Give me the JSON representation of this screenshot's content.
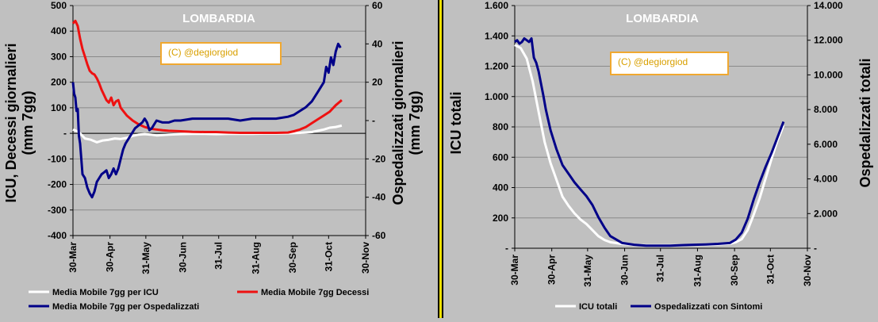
{
  "chart_data": [
    {
      "type": "line",
      "title": "LOMBARDIA",
      "watermark": "(C) @degiorgiod",
      "ylabel": "ICU, Decessi giornalieri (mm 7gg)",
      "ylabel_lines": [
        "ICU, Decessi giornalieri",
        "(mm 7gg)"
      ],
      "y2label": "Ospedalizzati giornalieri (mm 7gg)",
      "y2label_lines": [
        "Ospedalizzati giornalieri",
        "(mm 7gg)"
      ],
      "ylim": [
        -400,
        500
      ],
      "y2lim": [
        -60,
        60
      ],
      "yticks": [
        -400,
        -300,
        -200,
        -100,
        0,
        100,
        200,
        300,
        400,
        500
      ],
      "ytick_labels": [
        "-400",
        "-300",
        "-200",
        "-100",
        "-",
        "100",
        "200",
        "300",
        "400",
        "500"
      ],
      "y2ticks": [
        -60,
        -40,
        -20,
        0,
        20,
        40,
        60
      ],
      "y2tick_labels": [
        "-60",
        "-40",
        "-20",
        "-",
        "20",
        "40",
        "60"
      ],
      "xlim": [
        0,
        245
      ],
      "xticks": [
        0,
        31,
        61,
        92,
        122,
        153,
        184,
        214,
        245
      ],
      "xtick_labels": [
        "30-Mar",
        "30-Apr",
        "31-May",
        "30-Jun",
        "31-Jul",
        "31-Aug",
        "30-Sep",
        "31-Oct",
        "30-Nov"
      ],
      "grid": true,
      "legend_position": "bottom",
      "series": [
        {
          "name": "Media Mobile 7gg per ICU",
          "color": "#ffffff",
          "axis": "left",
          "x": [
            0,
            5,
            10,
            15,
            20,
            25,
            30,
            35,
            40,
            45,
            50,
            55,
            60,
            65,
            70,
            80,
            90,
            100,
            110,
            120,
            130,
            140,
            150,
            160,
            170,
            180,
            190,
            200,
            205,
            210,
            215,
            220,
            225
          ],
          "y": [
            15,
            5,
            -20,
            -25,
            -35,
            -28,
            -25,
            -20,
            -22,
            -18,
            -10,
            -5,
            -3,
            -5,
            -8,
            -5,
            -3,
            -2,
            -2,
            -3,
            -2,
            -2,
            -2,
            -1,
            -1,
            0,
            2,
            5,
            10,
            15,
            22,
            25,
            30
          ]
        },
        {
          "name": "Media Mobile 7gg Decessi",
          "color": "#ee1111",
          "axis": "left",
          "x": [
            0,
            2,
            4,
            6,
            8,
            10,
            12,
            14,
            16,
            18,
            20,
            22,
            24,
            26,
            28,
            30,
            32,
            34,
            36,
            38,
            40,
            45,
            50,
            55,
            60,
            65,
            70,
            75,
            80,
            90,
            100,
            110,
            120,
            130,
            140,
            150,
            160,
            170,
            180,
            185,
            190,
            195,
            200,
            205,
            210,
            215,
            220,
            225
          ],
          "y": [
            430,
            440,
            420,
            370,
            330,
            300,
            270,
            245,
            235,
            230,
            215,
            195,
            170,
            150,
            130,
            120,
            140,
            110,
            125,
            130,
            100,
            70,
            50,
            35,
            25,
            18,
            15,
            12,
            10,
            8,
            6,
            5,
            5,
            3,
            2,
            2,
            2,
            2,
            3,
            8,
            15,
            25,
            40,
            55,
            70,
            85,
            110,
            130
          ]
        },
        {
          "name": "Media Mobile 7gg per Ospedalizzati",
          "color": "#000088",
          "axis": "right",
          "x": [
            0,
            1,
            2,
            3,
            4,
            5,
            6,
            7,
            8,
            10,
            12,
            14,
            16,
            18,
            20,
            22,
            24,
            26,
            28,
            30,
            32,
            34,
            36,
            38,
            40,
            42,
            44,
            46,
            48,
            50,
            52,
            54,
            56,
            58,
            60,
            62,
            64,
            66,
            68,
            70,
            75,
            80,
            85,
            90,
            100,
            110,
            120,
            130,
            140,
            150,
            160,
            170,
            180,
            185,
            190,
            195,
            200,
            205,
            210,
            212,
            214,
            216,
            218,
            220,
            222,
            224
          ],
          "y": [
            20,
            14,
            12,
            5,
            6,
            -8,
            -12,
            -20,
            -28,
            -30,
            -35,
            -38,
            -40,
            -37,
            -32,
            -30,
            -28,
            -27,
            -26,
            -30,
            -28,
            -25,
            -28,
            -25,
            -20,
            -15,
            -12,
            -10,
            -8,
            -6,
            -4,
            -3,
            -2,
            -1,
            1,
            -1,
            -5,
            -4,
            -2,
            0,
            -1,
            -1,
            0,
            0,
            1,
            1,
            1,
            1,
            0,
            1,
            1,
            1,
            2,
            3,
            5,
            7,
            10,
            15,
            20,
            28,
            25,
            33,
            29,
            36,
            40,
            38
          ]
        }
      ]
    },
    {
      "type": "line",
      "title": "LOMBARDIA",
      "watermark": "(C) @degiorgiod",
      "ylabel": "ICU totali",
      "y2label": "Ospedalizzati totali",
      "ylim": [
        0,
        1600
      ],
      "y2lim": [
        0,
        14000
      ],
      "yticks": [
        0,
        200,
        400,
        600,
        800,
        1000,
        1200,
        1400,
        1600
      ],
      "ytick_labels": [
        "-",
        "200",
        "400",
        "600",
        "800",
        "1.000",
        "1.200",
        "1.400",
        "1.600"
      ],
      "y2ticks": [
        0,
        2000,
        4000,
        6000,
        8000,
        10000,
        12000,
        14000
      ],
      "y2tick_labels": [
        "-",
        "2.000",
        "4.000",
        "6.000",
        "8.000",
        "10.000",
        "12.000",
        "14.000"
      ],
      "xlim": [
        0,
        245
      ],
      "xticks": [
        0,
        31,
        61,
        92,
        122,
        153,
        184,
        214,
        245
      ],
      "xtick_labels": [
        "30-Mar",
        "30-Apr",
        "31-May",
        "30-Jun",
        "31-Jul",
        "31-Aug",
        "30-Sep",
        "31-Oct",
        "30-Nov"
      ],
      "grid": true,
      "legend_position": "bottom",
      "series": [
        {
          "name": "ICU totali",
          "color": "#ffffff",
          "axis": "left",
          "x": [
            0,
            5,
            10,
            15,
            20,
            25,
            30,
            35,
            40,
            45,
            50,
            55,
            60,
            65,
            70,
            75,
            80,
            90,
            100,
            110,
            120,
            130,
            140,
            150,
            160,
            170,
            180,
            185,
            190,
            195,
            200,
            205,
            210,
            215,
            220,
            225
          ],
          "y": [
            1340,
            1320,
            1250,
            1100,
            900,
            700,
            560,
            450,
            340,
            280,
            230,
            190,
            160,
            120,
            80,
            55,
            40,
            28,
            22,
            20,
            20,
            20,
            20,
            22,
            22,
            25,
            30,
            40,
            60,
            120,
            220,
            330,
            460,
            590,
            710,
            810
          ]
        },
        {
          "name": "Ospedalizzati con Sintomi",
          "color": "#000088",
          "axis": "right",
          "x": [
            0,
            2,
            4,
            6,
            8,
            10,
            12,
            14,
            16,
            18,
            20,
            22,
            24,
            26,
            28,
            30,
            35,
            40,
            45,
            50,
            55,
            60,
            65,
            70,
            75,
            80,
            90,
            100,
            110,
            120,
            130,
            140,
            150,
            160,
            170,
            180,
            185,
            190,
            195,
            200,
            205,
            210,
            215,
            220,
            225
          ],
          "y": [
            11900,
            12000,
            11800,
            11900,
            12100,
            12000,
            11900,
            12100,
            11000,
            10700,
            10200,
            9500,
            8800,
            8000,
            7400,
            6800,
            5700,
            4800,
            4300,
            3800,
            3400,
            3000,
            2500,
            1800,
            1200,
            700,
            300,
            200,
            150,
            150,
            150,
            180,
            200,
            220,
            250,
            300,
            500,
            900,
            1700,
            2800,
            3800,
            4700,
            5500,
            6400,
            7300
          ]
        }
      ]
    }
  ]
}
